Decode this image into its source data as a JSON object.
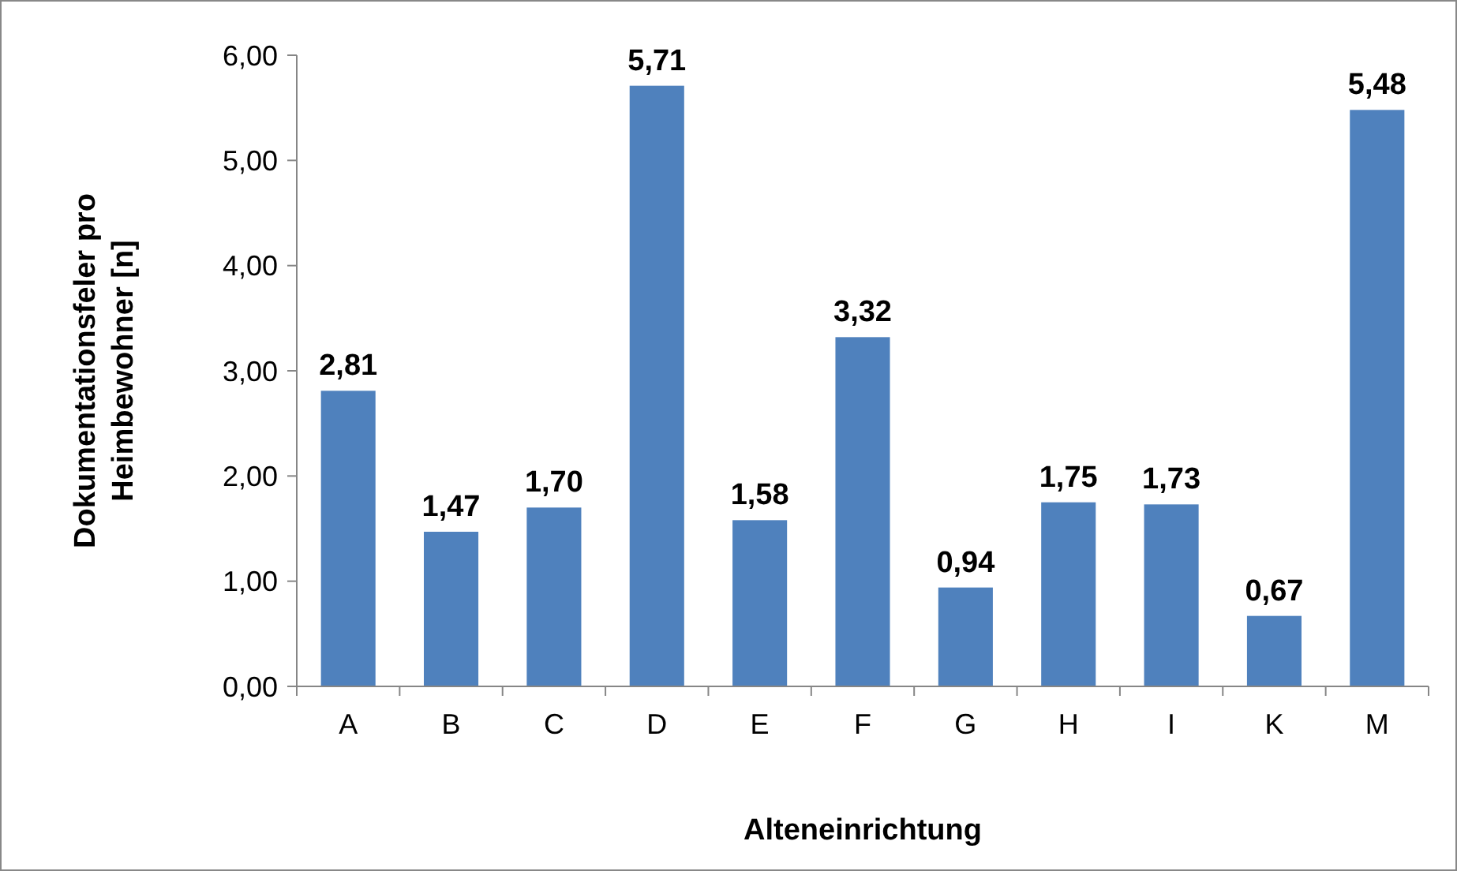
{
  "chart_data": {
    "type": "bar",
    "xlabel": "Alteneinrichtung",
    "ylabel": "Dokumentationsfeler pro Heimbewohner [n]",
    "categories": [
      "A",
      "B",
      "C",
      "D",
      "E",
      "F",
      "G",
      "H",
      "I",
      "K",
      "M"
    ],
    "values": [
      2.81,
      1.47,
      1.7,
      5.71,
      1.58,
      3.32,
      0.94,
      1.75,
      1.73,
      0.67,
      5.48
    ],
    "value_labels": [
      "2,81",
      "1,47",
      "1,70",
      "5,71",
      "1,58",
      "3,32",
      "0,94",
      "1,75",
      "1,73",
      "0,67",
      "5,48"
    ],
    "color": "#4f81bd",
    "ylim": [
      0,
      6
    ],
    "yticks": [
      {
        "value": 0,
        "label": "0,00"
      },
      {
        "value": 1,
        "label": "1,00"
      },
      {
        "value": 2,
        "label": "2,00"
      },
      {
        "value": 3,
        "label": "3,00"
      },
      {
        "value": 4,
        "label": "4,00"
      },
      {
        "value": 5,
        "label": "5,00"
      },
      {
        "value": 6,
        "label": "6,00"
      }
    ],
    "grid": false
  }
}
